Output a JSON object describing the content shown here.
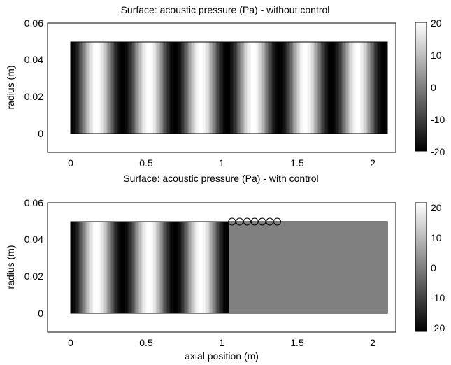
{
  "chart_data": [
    {
      "type": "heatmap",
      "title": "Surface: acoustic pressure (Pa) - without control",
      "xlabel": "",
      "ylabel": "radius (m)",
      "xlim": [
        -0.15,
        2.1
      ],
      "ylim": [
        -0.01,
        0.06
      ],
      "x_ticks": [
        "0",
        "0.5",
        "1",
        "1.5",
        "2"
      ],
      "y_ticks": [
        "0",
        "0.02",
        "0.04",
        "0.06"
      ],
      "domain": {
        "x": [
          0,
          2.1
        ],
        "y": [
          0,
          0.05
        ]
      },
      "field": {
        "pattern": "standing wave along axial position",
        "amplitude": 20,
        "wavelength": 0.346,
        "control_start": null,
        "residual_after_control": 0
      },
      "colorbar": {
        "range": [
          -20,
          20
        ],
        "ticks": [
          "20",
          "10",
          "0",
          "-10",
          "-20"
        ],
        "colormap": "gray"
      },
      "sensors": []
    },
    {
      "type": "heatmap",
      "title": "Surface: acoustic pressure (Pa) - with control",
      "xlabel": "axial position (m)",
      "ylabel": "radius (m)",
      "xlim": [
        -0.15,
        2.1
      ],
      "ylim": [
        -0.01,
        0.06
      ],
      "x_ticks": [
        "0",
        "0.5",
        "1",
        "1.5",
        "2"
      ],
      "y_ticks": [
        "0",
        "0.02",
        "0.04",
        "0.06"
      ],
      "domain": {
        "x": [
          0,
          2.1
        ],
        "y": [
          0,
          0.05
        ]
      },
      "field": {
        "pattern": "standing wave suppressed beyond control region",
        "amplitude": 20,
        "wavelength": 0.346,
        "control_start": 1.05,
        "residual_after_control": 0
      },
      "colorbar": {
        "range": [
          -20,
          20
        ],
        "ticks": [
          "20",
          "10",
          "0",
          "-10",
          "-20"
        ],
        "colormap": "gray"
      },
      "sensors": [
        {
          "x": 1.07,
          "y": 0.05
        },
        {
          "x": 1.12,
          "y": 0.05
        },
        {
          "x": 1.17,
          "y": 0.05
        },
        {
          "x": 1.22,
          "y": 0.05
        },
        {
          "x": 1.27,
          "y": 0.05
        },
        {
          "x": 1.32,
          "y": 0.05
        },
        {
          "x": 1.37,
          "y": 0.05
        }
      ]
    }
  ]
}
